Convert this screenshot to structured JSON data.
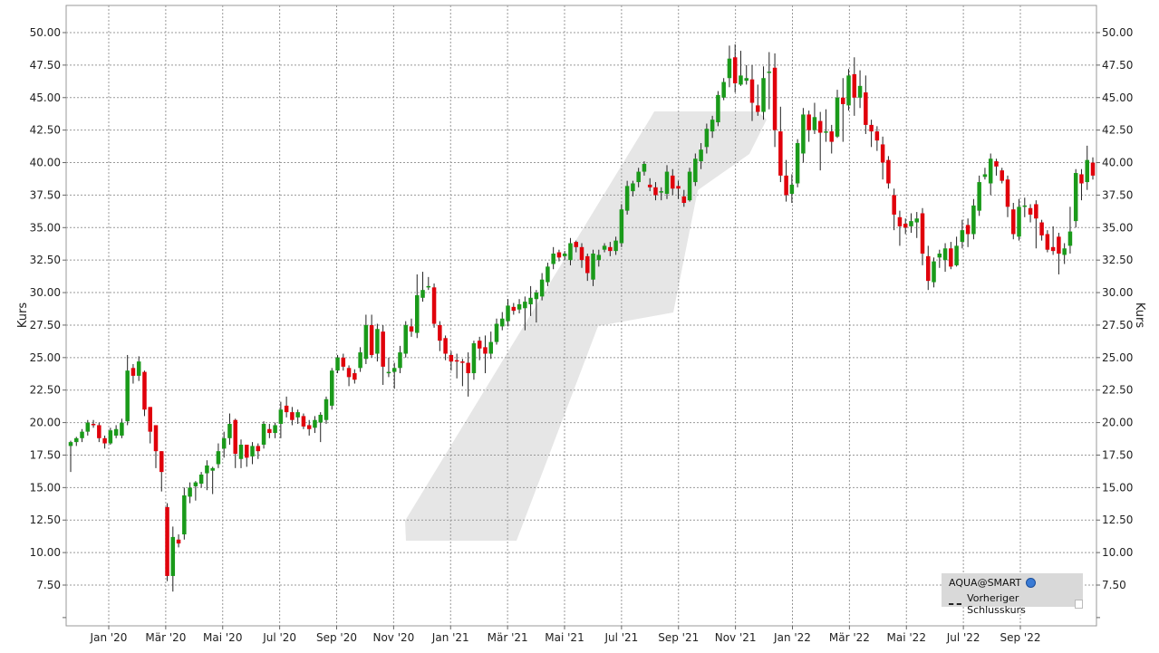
{
  "chart_data": {
    "type": "candlestick",
    "ylabel": "Kurs",
    "y_tick_labels": [
      "7.50",
      "10.00",
      "12.50",
      "15.00",
      "17.50",
      "20.00",
      "22.50",
      "25.00",
      "27.50",
      "30.00",
      "32.50",
      "35.00",
      "37.50",
      "40.00",
      "42.50",
      "45.00",
      "47.50",
      "50.00"
    ],
    "y_ticks": [
      7.5,
      10,
      12.5,
      15,
      17.5,
      20,
      22.5,
      25,
      27.5,
      30,
      32.5,
      35,
      37.5,
      40,
      42.5,
      45,
      47.5,
      50
    ],
    "ylim": [
      5.0,
      52.2
    ],
    "x_tick_labels": [
      "Jan '20",
      "Mär '20",
      "Mai '20",
      "Jul '20",
      "Sep '20",
      "Nov '20",
      "Jan '21",
      "Mär '21",
      "Mai '21",
      "Jul '21",
      "Sep '21",
      "Nov '21",
      "Jan '22",
      "Mär '22",
      "Mai '22",
      "Jul '22",
      "Sep '22"
    ],
    "grid": true,
    "legend_position": "bottom-right",
    "colors": {
      "up": "#1a9a1a",
      "down": "#e0000b",
      "grid": "#999999",
      "watermark": "#e6e6e6"
    },
    "series": [
      {
        "name": "AQUA@SMART",
        "candles": [
          [
            18.2,
            18.5,
            16.2,
            18.6
          ],
          [
            18.5,
            18.8,
            18.2,
            18.9
          ],
          [
            18.8,
            19.3,
            18.5,
            19.5
          ],
          [
            19.3,
            20.0,
            19.0,
            20.2
          ],
          [
            19.9,
            19.8,
            19.6,
            20.2
          ],
          [
            19.8,
            18.8,
            18.5,
            20.0
          ],
          [
            18.8,
            18.4,
            18.0,
            19.0
          ],
          [
            18.4,
            19.4,
            18.3,
            19.6
          ],
          [
            19.0,
            19.5,
            18.8,
            19.8
          ],
          [
            19.0,
            20.0,
            18.8,
            20.3
          ],
          [
            20.1,
            24.0,
            19.8,
            25.2
          ],
          [
            24.2,
            23.6,
            23.0,
            24.5
          ],
          [
            23.6,
            24.7,
            23.2,
            25.1
          ],
          [
            23.9,
            21.0,
            20.5,
            24.0
          ],
          [
            21.2,
            19.3,
            18.4,
            21.2
          ],
          [
            19.8,
            17.8,
            16.5,
            19.8
          ],
          [
            17.8,
            16.2,
            14.7,
            17.8
          ],
          [
            13.5,
            8.2,
            7.8,
            13.8
          ],
          [
            8.2,
            11.2,
            7.0,
            12.0
          ],
          [
            11.0,
            10.7,
            10.4,
            11.4
          ],
          [
            11.4,
            14.4,
            11.0,
            15.0
          ],
          [
            14.3,
            15.0,
            13.8,
            15.4
          ],
          [
            15.1,
            15.4,
            14.0,
            15.5
          ],
          [
            15.3,
            16.0,
            15.0,
            16.2
          ],
          [
            16.1,
            16.7,
            14.8,
            17.1
          ],
          [
            16.3,
            16.5,
            14.5,
            16.6
          ],
          [
            16.8,
            17.8,
            16.5,
            18.4
          ],
          [
            18.0,
            18.8,
            17.3,
            19.3
          ],
          [
            18.8,
            19.9,
            18.3,
            20.7
          ],
          [
            20.2,
            17.6,
            16.5,
            20.3
          ],
          [
            17.2,
            18.3,
            16.5,
            18.7
          ],
          [
            18.3,
            17.3,
            16.6,
            18.3
          ],
          [
            17.4,
            18.2,
            16.8,
            18.5
          ],
          [
            18.2,
            17.8,
            17.2,
            18.4
          ],
          [
            18.3,
            19.9,
            18.0,
            20.1
          ],
          [
            19.5,
            19.2,
            18.8,
            19.9
          ],
          [
            19.2,
            19.8,
            18.8,
            20.0
          ],
          [
            19.9,
            21.0,
            18.8,
            21.6
          ],
          [
            21.3,
            20.8,
            20.4,
            22.0
          ],
          [
            20.8,
            20.2,
            19.8,
            21.2
          ],
          [
            20.4,
            20.8,
            19.9,
            21.0
          ],
          [
            20.5,
            19.7,
            19.5,
            20.7
          ],
          [
            19.8,
            19.5,
            19.0,
            20.2
          ],
          [
            19.6,
            20.2,
            19.2,
            20.5
          ],
          [
            20.0,
            20.6,
            18.5,
            20.8
          ],
          [
            20.2,
            21.8,
            19.9,
            22.0
          ],
          [
            21.3,
            24.0,
            21.0,
            24.2
          ],
          [
            24.0,
            25.0,
            23.8,
            25.2
          ],
          [
            25.0,
            24.3,
            24.0,
            25.3
          ],
          [
            24.2,
            23.5,
            22.8,
            24.4
          ],
          [
            23.8,
            23.3,
            23.0,
            24.1
          ],
          [
            24.2,
            25.4,
            23.9,
            25.8
          ],
          [
            24.9,
            27.5,
            24.5,
            28.3
          ],
          [
            27.5,
            25.2,
            25.0,
            28.3
          ],
          [
            25.3,
            27.2,
            24.7,
            27.6
          ],
          [
            27.0,
            24.3,
            22.9,
            27.5
          ],
          [
            23.9,
            23.9,
            23.5,
            25.0
          ],
          [
            23.9,
            24.2,
            22.6,
            24.6
          ],
          [
            24.2,
            25.4,
            23.8,
            25.9
          ],
          [
            25.3,
            27.5,
            25.0,
            27.8
          ],
          [
            27.4,
            27.0,
            26.6,
            28.0
          ],
          [
            26.9,
            29.8,
            26.5,
            31.4
          ],
          [
            29.6,
            30.2,
            29.3,
            31.6
          ],
          [
            30.5,
            30.5,
            30.2,
            31.2
          ],
          [
            30.4,
            27.6,
            27.3,
            30.7
          ],
          [
            27.5,
            26.3,
            25.5,
            27.8
          ],
          [
            26.5,
            25.3,
            24.8,
            26.7
          ],
          [
            25.2,
            24.7,
            24.0,
            25.5
          ],
          [
            24.8,
            24.7,
            23.4,
            25.3
          ],
          [
            24.7,
            24.6,
            22.8,
            24.9
          ],
          [
            24.6,
            23.8,
            22.0,
            25.4
          ],
          [
            23.8,
            26.1,
            23.3,
            26.3
          ],
          [
            26.3,
            25.7,
            24.8,
            26.6
          ],
          [
            25.8,
            25.3,
            23.8,
            26.7
          ],
          [
            25.3,
            26.2,
            24.9,
            27.0
          ],
          [
            26.2,
            27.6,
            26.0,
            28.0
          ],
          [
            27.4,
            28.0,
            27.1,
            28.5
          ],
          [
            27.8,
            29.0,
            27.4,
            29.5
          ],
          [
            28.9,
            28.6,
            28.3,
            29.2
          ],
          [
            28.7,
            29.1,
            28.4,
            29.5
          ],
          [
            28.8,
            29.3,
            27.1,
            29.7
          ],
          [
            29.1,
            29.6,
            28.2,
            30.5
          ],
          [
            29.5,
            30.0,
            27.7,
            30.2
          ],
          [
            29.7,
            31.0,
            29.4,
            31.5
          ],
          [
            30.8,
            32.0,
            30.5,
            32.3
          ],
          [
            32.2,
            33.0,
            31.8,
            33.5
          ],
          [
            33.1,
            32.7,
            32.4,
            33.3
          ],
          [
            32.8,
            33.0,
            32.5,
            33.2
          ],
          [
            32.5,
            33.8,
            32.1,
            34.2
          ],
          [
            33.9,
            33.5,
            33.1,
            34.0
          ],
          [
            33.5,
            32.5,
            31.9,
            33.8
          ],
          [
            32.8,
            31.5,
            30.9,
            33.0
          ],
          [
            31.0,
            33.0,
            30.5,
            33.3
          ],
          [
            32.5,
            32.9,
            32.0,
            33.3
          ],
          [
            33.3,
            33.6,
            33.1,
            33.8
          ],
          [
            33.5,
            33.2,
            32.8,
            33.9
          ],
          [
            33.2,
            34.0,
            32.9,
            34.3
          ],
          [
            33.8,
            36.4,
            33.5,
            36.8
          ],
          [
            36.3,
            38.2,
            36.0,
            38.6
          ],
          [
            37.8,
            38.4,
            37.4,
            38.6
          ],
          [
            38.5,
            39.3,
            38.1,
            39.6
          ],
          [
            39.3,
            39.9,
            39.0,
            40.1
          ],
          [
            38.3,
            38.1,
            37.8,
            38.8
          ],
          [
            38.1,
            37.5,
            37.1,
            38.5
          ],
          [
            37.7,
            37.8,
            37.1,
            38.1
          ],
          [
            37.6,
            39.3,
            37.2,
            39.8
          ],
          [
            39.0,
            38.0,
            37.5,
            39.5
          ],
          [
            38.2,
            38.0,
            37.2,
            38.6
          ],
          [
            37.4,
            36.9,
            36.6,
            37.9
          ],
          [
            37.1,
            39.3,
            37.0,
            39.6
          ],
          [
            38.5,
            40.3,
            38.2,
            40.7
          ],
          [
            40.1,
            41.0,
            39.5,
            41.5
          ],
          [
            41.2,
            42.6,
            40.7,
            43.0
          ],
          [
            42.4,
            43.3,
            41.9,
            43.6
          ],
          [
            43.1,
            45.2,
            42.8,
            45.5
          ],
          [
            45.0,
            46.2,
            44.8,
            46.5
          ],
          [
            46.5,
            48.0,
            45.8,
            49.0
          ],
          [
            48.1,
            46.1,
            45.4,
            49.1
          ],
          [
            46.0,
            46.7,
            45.9,
            48.6
          ],
          [
            46.3,
            46.5,
            46.0,
            47.5
          ],
          [
            46.4,
            44.6,
            43.2,
            47.5
          ],
          [
            44.4,
            43.9,
            43.6,
            46.0
          ],
          [
            43.9,
            46.5,
            43.3,
            47.4
          ],
          [
            46.9,
            47.0,
            44.1,
            48.5
          ],
          [
            47.3,
            42.5,
            41.2,
            48.4
          ],
          [
            42.4,
            39.0,
            38.5,
            44.3
          ],
          [
            39.0,
            37.5,
            37.0,
            40.2
          ],
          [
            37.6,
            38.3,
            36.9,
            39.1
          ],
          [
            38.4,
            41.5,
            38.1,
            41.8
          ],
          [
            40.7,
            43.7,
            40.0,
            44.2
          ],
          [
            43.7,
            42.5,
            41.6,
            44.0
          ],
          [
            42.5,
            43.5,
            42.2,
            44.6
          ],
          [
            43.2,
            42.3,
            39.4,
            43.9
          ],
          [
            42.3,
            42.4,
            41.6,
            44.1
          ],
          [
            42.4,
            41.6,
            40.7,
            42.9
          ],
          [
            42.0,
            45.0,
            41.9,
            45.6
          ],
          [
            45.0,
            44.5,
            41.6,
            46.5
          ],
          [
            44.4,
            46.7,
            44.0,
            47.2
          ],
          [
            46.8,
            45.0,
            43.6,
            48.1
          ],
          [
            45.0,
            45.9,
            44.2,
            47.1
          ],
          [
            45.4,
            42.9,
            42.2,
            46.7
          ],
          [
            42.9,
            42.4,
            41.2,
            43.3
          ],
          [
            42.4,
            41.7,
            40.9,
            42.8
          ],
          [
            41.4,
            40.0,
            38.7,
            42.0
          ],
          [
            40.2,
            38.4,
            38.0,
            40.5
          ],
          [
            37.5,
            36.0,
            34.8,
            38.0
          ],
          [
            35.8,
            35.1,
            33.6,
            36.3
          ],
          [
            35.3,
            35.0,
            34.5,
            35.7
          ],
          [
            35.1,
            35.5,
            34.6,
            36.1
          ],
          [
            35.4,
            35.7,
            34.2,
            36.2
          ],
          [
            36.1,
            33.0,
            32.1,
            36.5
          ],
          [
            32.8,
            30.9,
            30.2,
            33.6
          ],
          [
            30.8,
            32.4,
            30.4,
            32.7
          ],
          [
            32.7,
            33.0,
            31.9,
            33.3
          ],
          [
            32.5,
            33.4,
            31.6,
            33.8
          ],
          [
            33.4,
            32.0,
            31.8,
            33.9
          ],
          [
            32.1,
            33.6,
            32.0,
            34.3
          ],
          [
            33.9,
            34.8,
            33.4,
            35.6
          ],
          [
            35.2,
            34.5,
            33.5,
            35.7
          ],
          [
            34.5,
            36.7,
            34.1,
            37.2
          ],
          [
            36.3,
            38.5,
            35.9,
            39.0
          ],
          [
            38.9,
            39.1,
            38.7,
            39.6
          ],
          [
            38.4,
            40.3,
            37.5,
            40.7
          ],
          [
            40.1,
            39.7,
            39.0,
            40.3
          ],
          [
            39.4,
            38.6,
            38.4,
            39.6
          ],
          [
            38.7,
            36.6,
            35.8,
            39.0
          ],
          [
            36.4,
            34.5,
            34.1,
            36.9
          ],
          [
            34.3,
            36.6,
            34.0,
            37.2
          ],
          [
            36.7,
            36.7,
            35.8,
            37.3
          ],
          [
            36.5,
            36.0,
            35.4,
            36.8
          ],
          [
            36.8,
            35.7,
            33.4,
            37.1
          ],
          [
            35.4,
            34.4,
            34.0,
            35.6
          ],
          [
            34.5,
            33.3,
            33.1,
            34.8
          ],
          [
            33.5,
            33.2,
            32.9,
            35.1
          ],
          [
            34.3,
            33.0,
            31.4,
            34.6
          ],
          [
            32.9,
            33.4,
            32.2,
            33.8
          ],
          [
            33.6,
            34.7,
            33.0,
            36.6
          ],
          [
            35.5,
            39.2,
            35.0,
            39.5
          ],
          [
            39.1,
            38.4,
            37.1,
            39.5
          ],
          [
            38.5,
            40.2,
            37.9,
            41.3
          ],
          [
            40.0,
            39.0,
            38.7,
            40.4
          ]
        ]
      }
    ]
  },
  "legend": {
    "series_name": "AQUA@SMART",
    "prev_close_label": "Vorheriger Schlusskurs"
  }
}
